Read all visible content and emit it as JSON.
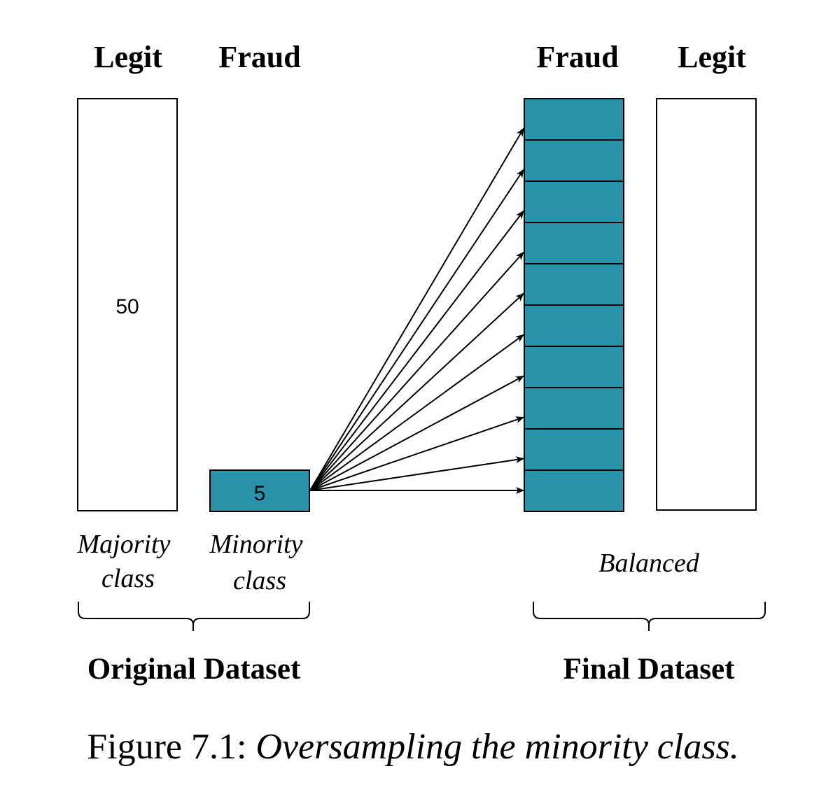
{
  "original": {
    "legit_label": "Legit",
    "fraud_label": "Fraud",
    "legit_count": "50",
    "fraud_count": "5",
    "majority_line1": "Majority",
    "majority_line2": "class",
    "minority_line1": "Minority",
    "minority_line2": "class",
    "group_label": "Original Dataset"
  },
  "final": {
    "fraud_label": "Fraud",
    "legit_label": "Legit",
    "fraud_copies": 10,
    "balanced_label": "Balanced",
    "group_label": "Final Dataset"
  },
  "caption": {
    "prefix": "Figure 7.1: ",
    "text": "Oversampling the minority class."
  },
  "colors": {
    "fraud_fill": "#2893A8",
    "stroke": "#000000",
    "background": "#FFFFFF"
  }
}
